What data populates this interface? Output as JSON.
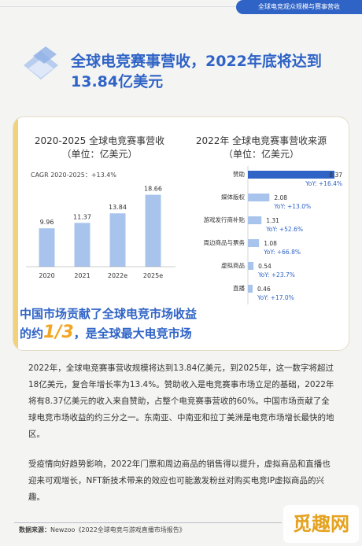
{
  "header": {
    "tag": "全球电竞观众规模与赛事营收"
  },
  "headline": {
    "title": "全球电竞赛事营收，2022年底将达到13.84亿美元"
  },
  "left_chart": {
    "title": "2020-2025 全球电竞赛事营收",
    "unit": "（单位：亿美元）"
  },
  "right_chart": {
    "title": "2022年 全球电竞赛事营收来源",
    "unit": "（单位：亿美元）"
  },
  "chart_data": [
    {
      "type": "bar",
      "title": "2020-2025 全球电竞赛事营收",
      "ylabel": "",
      "categories": [
        "2020",
        "2021",
        "2022e",
        "2025e"
      ],
      "values": [
        9.96,
        11.37,
        13.84,
        18.66
      ],
      "annotation": "CAGR 2020-2025：+13.4%",
      "colors": [
        "#a9c4ec",
        "#a9c4ec",
        "#a9c4ec",
        "#a9c4ec"
      ]
    },
    {
      "type": "bar",
      "orientation": "horizontal",
      "title": "2022年 全球电竞赛事营收来源",
      "categories": [
        "赞助",
        "媒体版权",
        "游戏发行商补贴",
        "周边商品与票务",
        "虚拟商品",
        "直播"
      ],
      "values": [
        8.37,
        2.08,
        1.31,
        1.08,
        0.54,
        0.46
      ],
      "yoy": [
        "YoY: +16.4%",
        "YoY: +13.0%",
        "YoY: +52.6%",
        "YoY: +66.8%",
        "YoY: +23.7%",
        "YoY: +17.0%"
      ],
      "colors": [
        "#2f63c6",
        "#a9c4ec",
        "#a9c4ec",
        "#a9c4ec",
        "#a9c4ec",
        "#a9c4ec"
      ]
    }
  ],
  "card_footer": {
    "line1": "中国市场贡献了全球电竞市场收益",
    "pre": "的约",
    "big": "1/3",
    "post": "，是全球最大电竞市场"
  },
  "paragraphs": {
    "p1": "2022年，全球电竞赛事营收规模将达到13.84亿美元，到2025年，这一数字将超过18亿美元，复合年增长率为13.4%。赞助收入是电竞赛事市场立足的基础，2022年将有8.37亿美元的收入来自赞助，占整个电竞赛事营收的60%。中国市场贡献了全球电竞市场收益的约三分之一。东南亚、中南亚和拉丁美洲是电竞市场增长最快的地区。",
    "p2": "受疫情向好趋势影响，2022年门票和周边商品的销售得以提升，虚拟商品和直播也迎来可观增长，NFT新技术带来的效应也可能激发粉丝对购买电竞IP虚拟商品的兴趣。"
  },
  "source": {
    "label": "数据来源：",
    "text": "Newzoo《2022全球电竞与游戏直播市场报告》"
  },
  "watermark": {
    "text": "觅趣网"
  }
}
